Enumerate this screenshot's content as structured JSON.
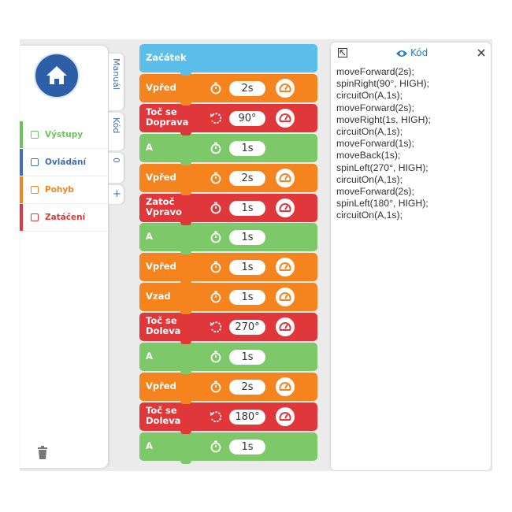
{
  "sidebar": {
    "categories": [
      {
        "label": "Výstupy",
        "color": "#6cc35a"
      },
      {
        "label": "Ovládání",
        "color": "#3f6fb6"
      },
      {
        "label": "Pohyb",
        "color": "#f5841f"
      },
      {
        "label": "Zatáčení",
        "color": "#e0383a"
      }
    ]
  },
  "tabs": [
    "Manuál",
    "Kód",
    "0",
    "+"
  ],
  "blocks": [
    {
      "label_lines": [
        "Začátek"
      ],
      "color": "#5bbfea"
    },
    {
      "label_lines": [
        "Vpřed"
      ],
      "value": "2s",
      "icon": "timer",
      "gauge": true,
      "color": "#f5841f"
    },
    {
      "label_lines": [
        "Toč se",
        "Doprava"
      ],
      "value": "90°",
      "icon": "rotate",
      "gauge": true,
      "color": "#e0383a"
    },
    {
      "label_lines": [
        "A"
      ],
      "value": "1s",
      "icon": "timer",
      "gauge": false,
      "color": "#7dc96a"
    },
    {
      "label_lines": [
        "Vpřed"
      ],
      "value": "2s",
      "icon": "timer",
      "gauge": true,
      "color": "#f5841f"
    },
    {
      "label_lines": [
        "Zatoč",
        "Vpravo"
      ],
      "value": "1s",
      "icon": "timer",
      "gauge": true,
      "color": "#e0383a"
    },
    {
      "label_lines": [
        "A"
      ],
      "value": "1s",
      "icon": "timer",
      "gauge": false,
      "color": "#7dc96a"
    },
    {
      "label_lines": [
        "Vpřed"
      ],
      "value": "1s",
      "icon": "timer",
      "gauge": true,
      "color": "#f5841f"
    },
    {
      "label_lines": [
        "Vzad"
      ],
      "value": "1s",
      "icon": "timer",
      "gauge": true,
      "color": "#f5841f"
    },
    {
      "label_lines": [
        "Toč se",
        "Doleva"
      ],
      "value": "270°",
      "icon": "rotate",
      "gauge": true,
      "color": "#e0383a"
    },
    {
      "label_lines": [
        "A"
      ],
      "value": "1s",
      "icon": "timer",
      "gauge": false,
      "color": "#7dc96a"
    },
    {
      "label_lines": [
        "Vpřed"
      ],
      "value": "2s",
      "icon": "timer",
      "gauge": true,
      "color": "#f5841f"
    },
    {
      "label_lines": [
        "Toč se",
        "Doleva"
      ],
      "value": "180°",
      "icon": "rotate",
      "gauge": true,
      "color": "#e0383a"
    },
    {
      "label_lines": [
        "A"
      ],
      "value": "1s",
      "icon": "timer",
      "gauge": false,
      "color": "#7dc96a"
    }
  ],
  "code_panel": {
    "title": "Kód",
    "lines": [
      "moveForward(2s);",
      "spinRight(90°, HIGH);",
      "circuitOn(A,1s);",
      "moveForward(2s);",
      "moveRight(1s, HIGH);",
      "circuitOn(A,1s);",
      "moveForward(1s);",
      "moveBack(1s);",
      "spinLeft(270°, HIGH);",
      "circuitOn(A,1s);",
      "moveForward(2s);",
      "spinLeft(180°, HIGH);",
      "circuitOn(A,1s);"
    ]
  }
}
